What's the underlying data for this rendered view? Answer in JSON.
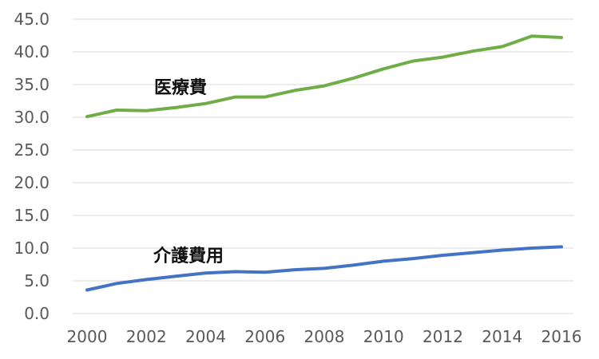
{
  "chart_data": {
    "type": "line",
    "title": "",
    "xlabel": "",
    "ylabel": "",
    "x": [
      2000,
      2001,
      2002,
      2003,
      2004,
      2005,
      2006,
      2007,
      2008,
      2009,
      2010,
      2011,
      2012,
      2013,
      2014,
      2015,
      2016
    ],
    "x_tick_labels": [
      "2000",
      "2002",
      "2004",
      "2006",
      "2008",
      "2010",
      "2012",
      "2014",
      "2016"
    ],
    "y_tick_labels": [
      "0.0",
      "5.0",
      "10.0",
      "15.0",
      "20.0",
      "25.0",
      "30.0",
      "35.0",
      "40.0",
      "45.0"
    ],
    "ylim": [
      0,
      45
    ],
    "grid": "horizontal",
    "legend": "none",
    "series": [
      {
        "name": "医療費",
        "color": "#70AD47",
        "values": [
          30.1,
          31.1,
          31.0,
          31.5,
          32.1,
          33.1,
          33.1,
          34.1,
          34.8,
          36.0,
          37.4,
          38.6,
          39.2,
          40.1,
          40.8,
          42.4,
          42.2
        ]
      },
      {
        "name": "介護費用",
        "color": "#4472C4",
        "values": [
          3.6,
          4.6,
          5.2,
          5.7,
          6.2,
          6.4,
          6.3,
          6.7,
          6.9,
          7.4,
          8.0,
          8.4,
          8.9,
          9.3,
          9.7,
          10.0,
          10.2
        ]
      }
    ]
  }
}
